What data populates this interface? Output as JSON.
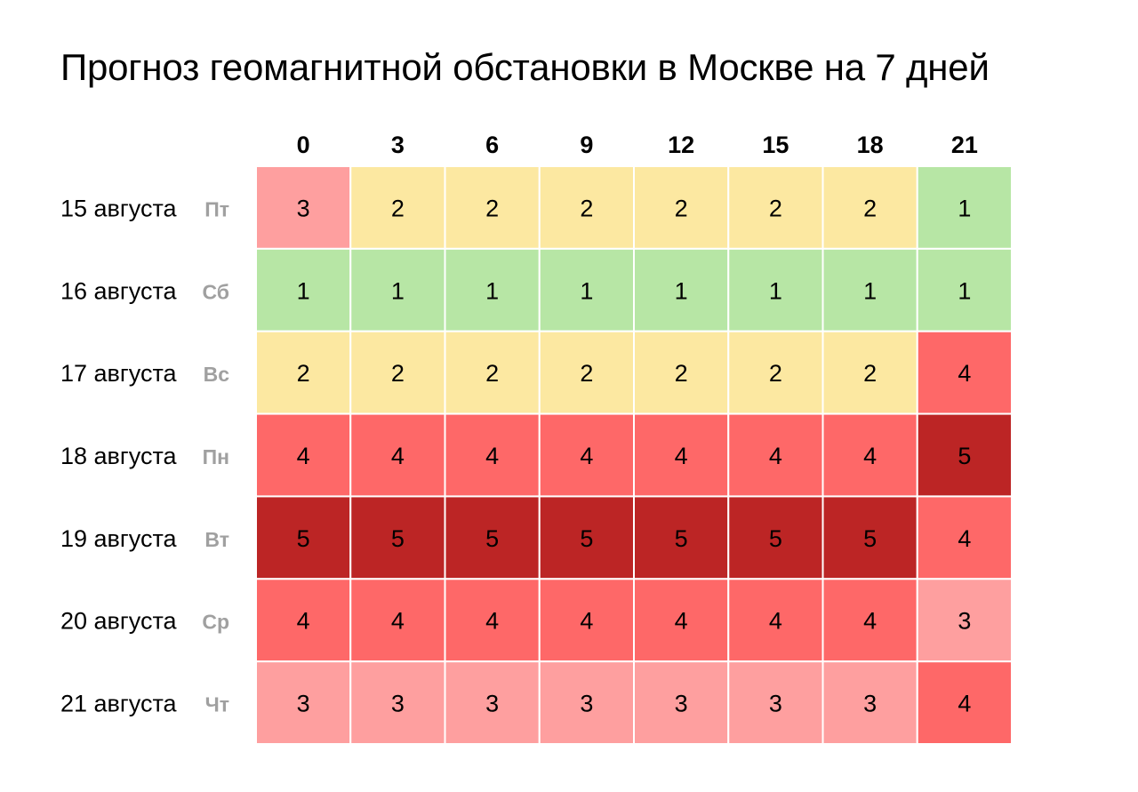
{
  "page": {
    "title": "Прогноз геомагнитной обстановки в Москве на 7 дней"
  },
  "chart_data": {
    "type": "heatmap",
    "title": "Прогноз геомагнитной обстановки в Москве на 7 дней",
    "columns": [
      "0",
      "3",
      "6",
      "9",
      "12",
      "15",
      "18",
      "21"
    ],
    "rows": [
      {
        "date": "15 августа",
        "weekday": "Пт",
        "values": [
          3,
          2,
          2,
          2,
          2,
          2,
          2,
          1
        ]
      },
      {
        "date": "16 августа",
        "weekday": "Сб",
        "values": [
          1,
          1,
          1,
          1,
          1,
          1,
          1,
          1
        ]
      },
      {
        "date": "17 августа",
        "weekday": "Вс",
        "values": [
          2,
          2,
          2,
          2,
          2,
          2,
          2,
          4
        ]
      },
      {
        "date": "18 августа",
        "weekday": "Пн",
        "values": [
          4,
          4,
          4,
          4,
          4,
          4,
          4,
          5
        ]
      },
      {
        "date": "19 августа",
        "weekday": "Вт",
        "values": [
          5,
          5,
          5,
          5,
          5,
          5,
          5,
          4
        ]
      },
      {
        "date": "20 августа",
        "weekday": "Ср",
        "values": [
          4,
          4,
          4,
          4,
          4,
          4,
          4,
          3
        ]
      },
      {
        "date": "21 августа",
        "weekday": "Чт",
        "values": [
          3,
          3,
          3,
          3,
          3,
          3,
          3,
          4
        ]
      }
    ],
    "color_scale": {
      "1": "#b7e6a5",
      "2": "#fce8a1",
      "3": "#fe9f9f",
      "4": "#fe6868",
      "5": "#bc2525"
    },
    "text_color": "#000000",
    "weekday_color": "#a0a0a0",
    "grid_line_color": "#ffffff"
  }
}
